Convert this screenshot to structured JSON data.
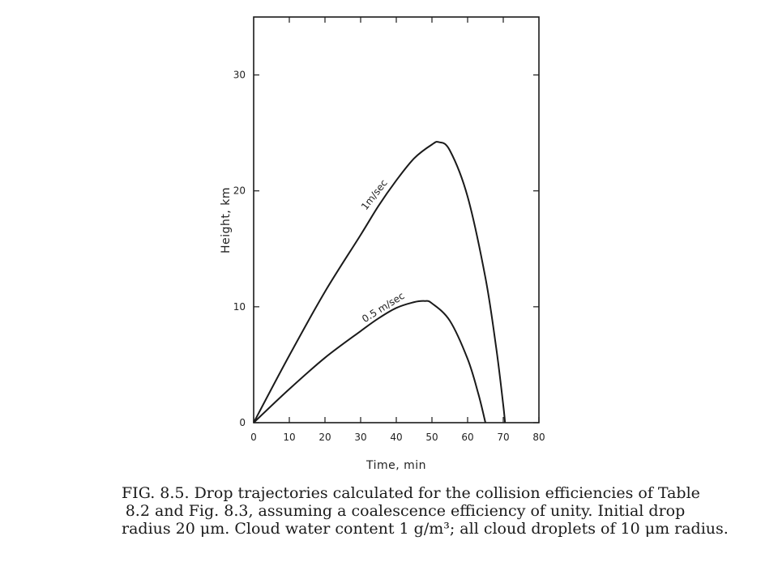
{
  "chart_data": {
    "type": "line",
    "xlabel": "Time,  min",
    "ylabel": "Height,  km",
    "xlim": [
      0,
      80
    ],
    "ylim": [
      0,
      35
    ],
    "xticks": [
      0,
      10,
      20,
      30,
      40,
      50,
      60,
      70,
      80
    ],
    "yticks": [
      0,
      10,
      20,
      30
    ],
    "grid": false,
    "series": [
      {
        "name": "1m/sec",
        "x": [
          0,
          10,
          20,
          30,
          35,
          40,
          45,
          50,
          52,
          55,
          60,
          65,
          68,
          70,
          70.5
        ],
        "y": [
          0,
          5.8,
          11.3,
          16.2,
          18.7,
          20.9,
          22.8,
          24.0,
          24.2,
          23.5,
          19.5,
          12.5,
          6.5,
          1.5,
          0
        ]
      },
      {
        "name": "0.5 m/sec",
        "x": [
          0,
          10,
          20,
          30,
          35,
          40,
          45,
          48,
          50,
          55,
          60,
          63,
          65
        ],
        "y": [
          0,
          2.9,
          5.6,
          7.9,
          9.0,
          9.9,
          10.4,
          10.5,
          10.3,
          8.8,
          5.5,
          2.5,
          0
        ]
      }
    ]
  },
  "caption": {
    "line1": "FIG. 8.5. Drop trajectories calculated for the collision efficiencies of Table",
    "line2": "8.2 and Fig. 8.3, assuming a coalescence efficiency of unity. Initial drop",
    "line3": "radius 20 μm. Cloud water content 1 g/m³; all cloud droplets of 10 μm radius."
  }
}
